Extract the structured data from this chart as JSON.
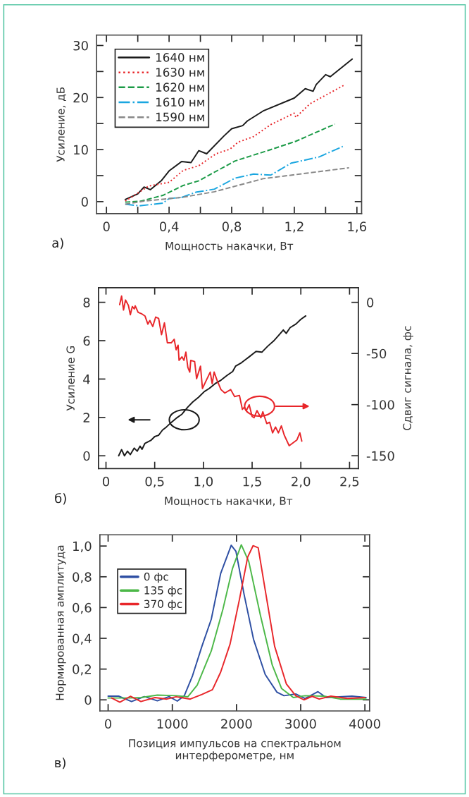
{
  "chart_data": [
    {
      "type": "line",
      "xlabel": "Мощность накачки, Вт",
      "ylabel": "Усиление, дБ",
      "annotations": [
        "а)"
      ],
      "xlim": [
        -0.063,
        1.63
      ],
      "ylim": [
        -2.3,
        32.0
      ],
      "xticks": [
        0,
        {
          "value": 0.2,
          "label": null
        },
        {
          "value": 0.4,
          "label": "0,4"
        },
        {
          "value": 0.6,
          "label": null
        },
        {
          "value": 0.8,
          "label": "0,8"
        },
        {
          "value": 1.0,
          "label": null
        },
        {
          "value": 1.2,
          "label": "1,2"
        },
        {
          "value": 1.4,
          "label": null
        },
        {
          "value": 1.6,
          "label": "1,6"
        }
      ],
      "yticks": [
        0,
        {
          "value": 5,
          "label": null
        },
        10,
        {
          "value": 15,
          "label": null
        },
        20,
        {
          "value": 25,
          "label": null
        },
        30
      ],
      "legend": "top left",
      "grid": false,
      "series": [
        {
          "name": "1640 нм",
          "color": "#1a1a1a",
          "line_style": "solid",
          "x": [
            0.12,
            0.2,
            0.24,
            0.28,
            0.35,
            0.4,
            0.48,
            0.54,
            0.59,
            0.64,
            0.75,
            0.8,
            0.87,
            0.9,
            1.0,
            1.2,
            1.27,
            1.32,
            1.34,
            1.4,
            1.43,
            1.57
          ],
          "values": [
            0.4,
            1.5,
            2.8,
            2.3,
            4.0,
            5.9,
            7.7,
            7.5,
            9.8,
            9.2,
            12.6,
            14.0,
            14.6,
            15.5,
            17.4,
            19.9,
            21.7,
            21.2,
            22.5,
            24.4,
            24.0,
            27.4
          ]
        },
        {
          "name": "1630 нм",
          "color": "#e8262a",
          "line_style": "dotted",
          "x": [
            0.12,
            0.27,
            0.4,
            0.49,
            0.59,
            0.7,
            0.79,
            0.84,
            0.94,
            1.05,
            1.2,
            1.21,
            1.3,
            1.52
          ],
          "values": [
            0.1,
            3.0,
            3.7,
            6.0,
            6.9,
            9.2,
            10.1,
            11.4,
            12.5,
            14.8,
            17.0,
            16.2,
            18.8,
            22.4
          ]
        },
        {
          "name": "1620 нм",
          "color": "#1a9a46",
          "line_style": "dashed",
          "x": [
            0.12,
            0.22,
            0.36,
            0.49,
            0.59,
            0.82,
            1.03,
            1.21,
            1.46
          ],
          "values": [
            -0.1,
            0.1,
            1.2,
            3.1,
            4.0,
            7.8,
            9.8,
            11.6,
            14.9
          ]
        },
        {
          "name": "1610 нм",
          "color": "#1aa6e0",
          "line_style": "dashdot",
          "x": [
            0.12,
            0.21,
            0.36,
            0.4,
            0.48,
            0.57,
            0.69,
            0.82,
            0.94,
            1.05,
            1.18,
            1.36,
            1.51
          ],
          "values": [
            -0.5,
            -0.8,
            -0.3,
            0.6,
            0.8,
            1.8,
            2.4,
            4.5,
            5.3,
            5.1,
            7.4,
            8.6,
            10.6
          ]
        },
        {
          "name": "1590 нм",
          "color": "#888888",
          "line_style": "dashed",
          "x": [
            0.12,
            0.24,
            0.48,
            0.69,
            1.0,
            1.21,
            1.55
          ],
          "values": [
            -0.5,
            0.1,
            0.8,
            1.9,
            4.4,
            5.2,
            6.5
          ]
        }
      ]
    },
    {
      "type": "line",
      "xlabel": "Мощность накачки, Вт",
      "ylabel": "Усиление G",
      "y2label": "Сдвиг сигнала, фс",
      "annotations": [
        "б)"
      ],
      "xlim": [
        -0.077,
        2.59
      ],
      "ylim": [
        -0.67,
        8.76
      ],
      "y2lim": [
        -162.6,
        14.3
      ],
      "xticks": [
        0,
        {
          "value": 0.5,
          "label": "0,5"
        },
        {
          "value": 1.0,
          "label": "1,0"
        },
        {
          "value": 1.5,
          "label": "1,5"
        },
        {
          "value": 2.0,
          "label": "2,0"
        },
        {
          "value": 2.5,
          "label": "2,5"
        }
      ],
      "yticks": [
        0,
        2,
        4,
        6,
        8
      ],
      "y2ticks": [
        0,
        -50,
        -100,
        -150
      ],
      "grid": false,
      "series": [
        {
          "color": "#1a1a1a",
          "line_style": "solid",
          "x": [
            0.13,
            0.16,
            0.19,
            0.22,
            0.25,
            0.29,
            0.32,
            0.35,
            0.37,
            0.4,
            0.46,
            0.5,
            0.54,
            0.58,
            0.62,
            0.67,
            0.73,
            0.78,
            0.84,
            0.89,
            0.95,
            1.01,
            1.06,
            1.12,
            1.18,
            1.24,
            1.3,
            1.33,
            1.39,
            1.47,
            1.54,
            1.6,
            1.66,
            1.72,
            1.77,
            1.82,
            1.85,
            1.89,
            1.95,
            2.0,
            2.05
          ],
          "values": [
            0.0,
            0.32,
            0.0,
            0.24,
            0.06,
            0.4,
            0.24,
            0.5,
            0.34,
            0.65,
            0.8,
            1.0,
            1.07,
            1.34,
            1.5,
            1.74,
            1.99,
            2.17,
            2.54,
            2.8,
            3.05,
            3.35,
            3.51,
            3.76,
            3.94,
            4.18,
            4.39,
            4.67,
            4.85,
            5.16,
            5.44,
            5.4,
            5.71,
            5.98,
            6.26,
            6.56,
            6.38,
            6.68,
            6.87,
            7.11,
            7.29
          ]
        },
        {
          "color": "#e8262a",
          "line_style": "solid",
          "axis": "y2",
          "x": [
            0.14,
            0.16,
            0.18,
            0.2,
            0.23,
            0.25,
            0.27,
            0.29,
            0.3,
            0.33,
            0.37,
            0.4,
            0.43,
            0.45,
            0.48,
            0.51,
            0.54,
            0.57,
            0.6,
            0.63,
            0.67,
            0.7,
            0.72,
            0.74,
            0.75,
            0.78,
            0.8,
            0.82,
            0.84,
            0.86,
            0.87,
            0.91,
            0.93,
            0.97,
            0.99,
            1.03,
            1.07,
            1.09,
            1.11,
            1.14,
            1.18,
            1.22,
            1.28,
            1.32,
            1.37,
            1.4,
            1.42,
            1.44,
            1.47,
            1.5,
            1.52,
            1.55,
            1.59,
            1.61,
            1.65,
            1.68,
            1.71,
            1.74,
            1.77,
            1.8,
            1.83,
            1.88,
            1.96,
            1.99,
            2.01
          ],
          "values": [
            -2.3,
            6.2,
            -7.5,
            2.3,
            -3.0,
            -12.1,
            -4.1,
            -6.4,
            -3.4,
            -9.8,
            -11.4,
            -13.3,
            -21.3,
            -17.8,
            -23.6,
            -14.4,
            -15.6,
            -31.6,
            -20.1,
            -39.6,
            -39.6,
            -36.1,
            -46.4,
            -41.9,
            -56.7,
            -53.3,
            -56.7,
            -48.7,
            -63.6,
            -68.2,
            -56.7,
            -57.9,
            -74.6,
            -62.4,
            -84.2,
            -76.2,
            -68.2,
            -79.6,
            -68.2,
            -76.2,
            -85.3,
            -88.7,
            -85.3,
            -92.1,
            -91.0,
            -104.7,
            -102.5,
            -105.9,
            -100.2,
            -111.6,
            -112.8,
            -105.9,
            -112.8,
            -107.0,
            -118.5,
            -117.3,
            -127.6,
            -121.9,
            -127.6,
            -120.8,
            -129.9,
            -140.2,
            -134.5,
            -127.6,
            -135.7
          ]
        }
      ]
    },
    {
      "type": "line",
      "xlabel": "Позиция импульсов на спектральном\nинтерферометре, нм",
      "ylabel": "Нормированная амплитуда",
      "annotations": [
        "в)"
      ],
      "xlim": [
        -128,
        4073
      ],
      "ylim": [
        -0.072,
        1.073
      ],
      "xticks": [
        0,
        1000,
        2000,
        3000,
        4000
      ],
      "yticks": [
        0,
        {
          "value": 0.2,
          "label": "0,2"
        },
        {
          "value": 0.4,
          "label": "0,4"
        },
        {
          "value": 0.6,
          "label": "0,6"
        },
        {
          "value": 0.8,
          "label": "0,8"
        },
        {
          "value": 1.0,
          "label": "1,0"
        }
      ],
      "legend": "top left",
      "grid": false,
      "series": [
        {
          "name": "0 фс",
          "color": "#2e4fa3",
          "line_style": "solid",
          "x": [
            0,
            164,
            365,
            566,
            767,
            950,
            1078,
            1187,
            1315,
            1461,
            1607,
            1753,
            1918,
            1991,
            2119,
            2265,
            2447,
            2630,
            2740,
            2922,
            3068,
            3269,
            3397,
            3799,
            4018
          ],
          "values": [
            0.024,
            0.024,
            -0.011,
            0.021,
            -0.006,
            0.021,
            -0.008,
            0.027,
            0.157,
            0.348,
            0.524,
            0.821,
            1.005,
            0.966,
            0.684,
            0.394,
            0.165,
            0.05,
            0.027,
            0.038,
            0.009,
            0.053,
            0.015,
            0.024,
            0.015
          ]
        },
        {
          "name": "135 фс",
          "color": "#4cb848",
          "line_style": "solid",
          "x": [
            0,
            329,
            511,
            767,
            1059,
            1242,
            1388,
            1607,
            1790,
            1936,
            2075,
            2192,
            2374,
            2557,
            2703,
            2886,
            3068,
            3361,
            3616,
            4018
          ],
          "values": [
            0.012,
            0.012,
            0.015,
            0.031,
            0.027,
            0.02,
            0.096,
            0.318,
            0.592,
            0.852,
            1.008,
            0.898,
            0.547,
            0.226,
            0.073,
            0.015,
            0.027,
            0.024,
            0.005,
            0.005
          ]
        },
        {
          "name": "370 фс",
          "color": "#e8262a",
          "line_style": "solid",
          "x": [
            55,
            183,
            347,
            511,
            731,
            914,
            1059,
            1279,
            1461,
            1625,
            1753,
            1900,
            2046,
            2174,
            2258,
            2338,
            2447,
            2594,
            2776,
            2922,
            3050,
            3178,
            3288,
            3470,
            3726,
            4000
          ],
          "values": [
            0.012,
            -0.015,
            0.023,
            -0.011,
            0.015,
            0.005,
            0.02,
            0.005,
            0.035,
            0.066,
            0.18,
            0.363,
            0.653,
            0.928,
            1.002,
            0.989,
            0.715,
            0.348,
            0.104,
            0.027,
            0.0,
            0.023,
            0.005,
            0.024,
            0.009,
            0.015
          ]
        }
      ]
    }
  ]
}
